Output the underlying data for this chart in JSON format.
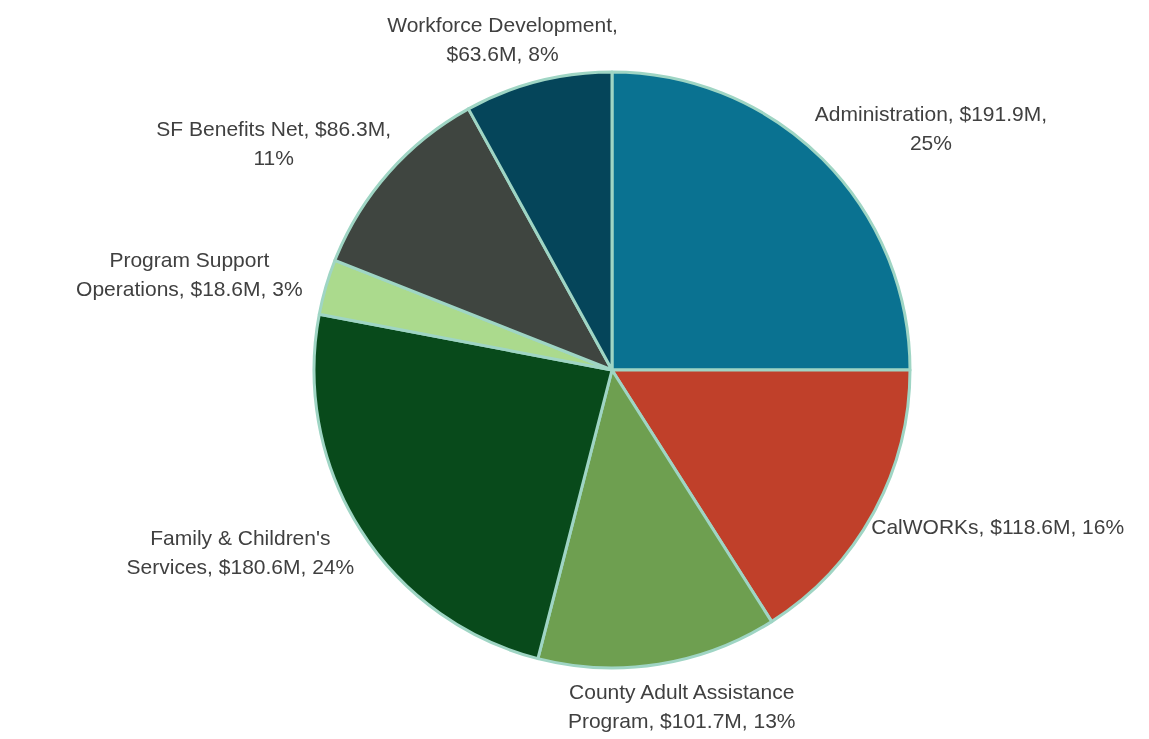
{
  "chart_data": {
    "type": "pie",
    "categories": [
      "Administration, $191.9M, 25%",
      "CalWORKs, $118.6M, 16%",
      "County Adult Assistance Program, $101.7M, 13%",
      "Family & Children's Services, $180.6M, 24%",
      "Program Support Operations, $18.6M, 3%",
      "SF Benefits Net, $86.3M, 11%",
      "Workforce Development, $63.6M, 8%"
    ],
    "values": [
      25,
      16,
      13,
      24,
      3,
      11,
      8
    ],
    "colors": [
      "#0a7291",
      "#c0402a",
      "#6e9f50",
      "#084a1b",
      "#abda8d",
      "#3f4540",
      "#05455a"
    ]
  }
}
